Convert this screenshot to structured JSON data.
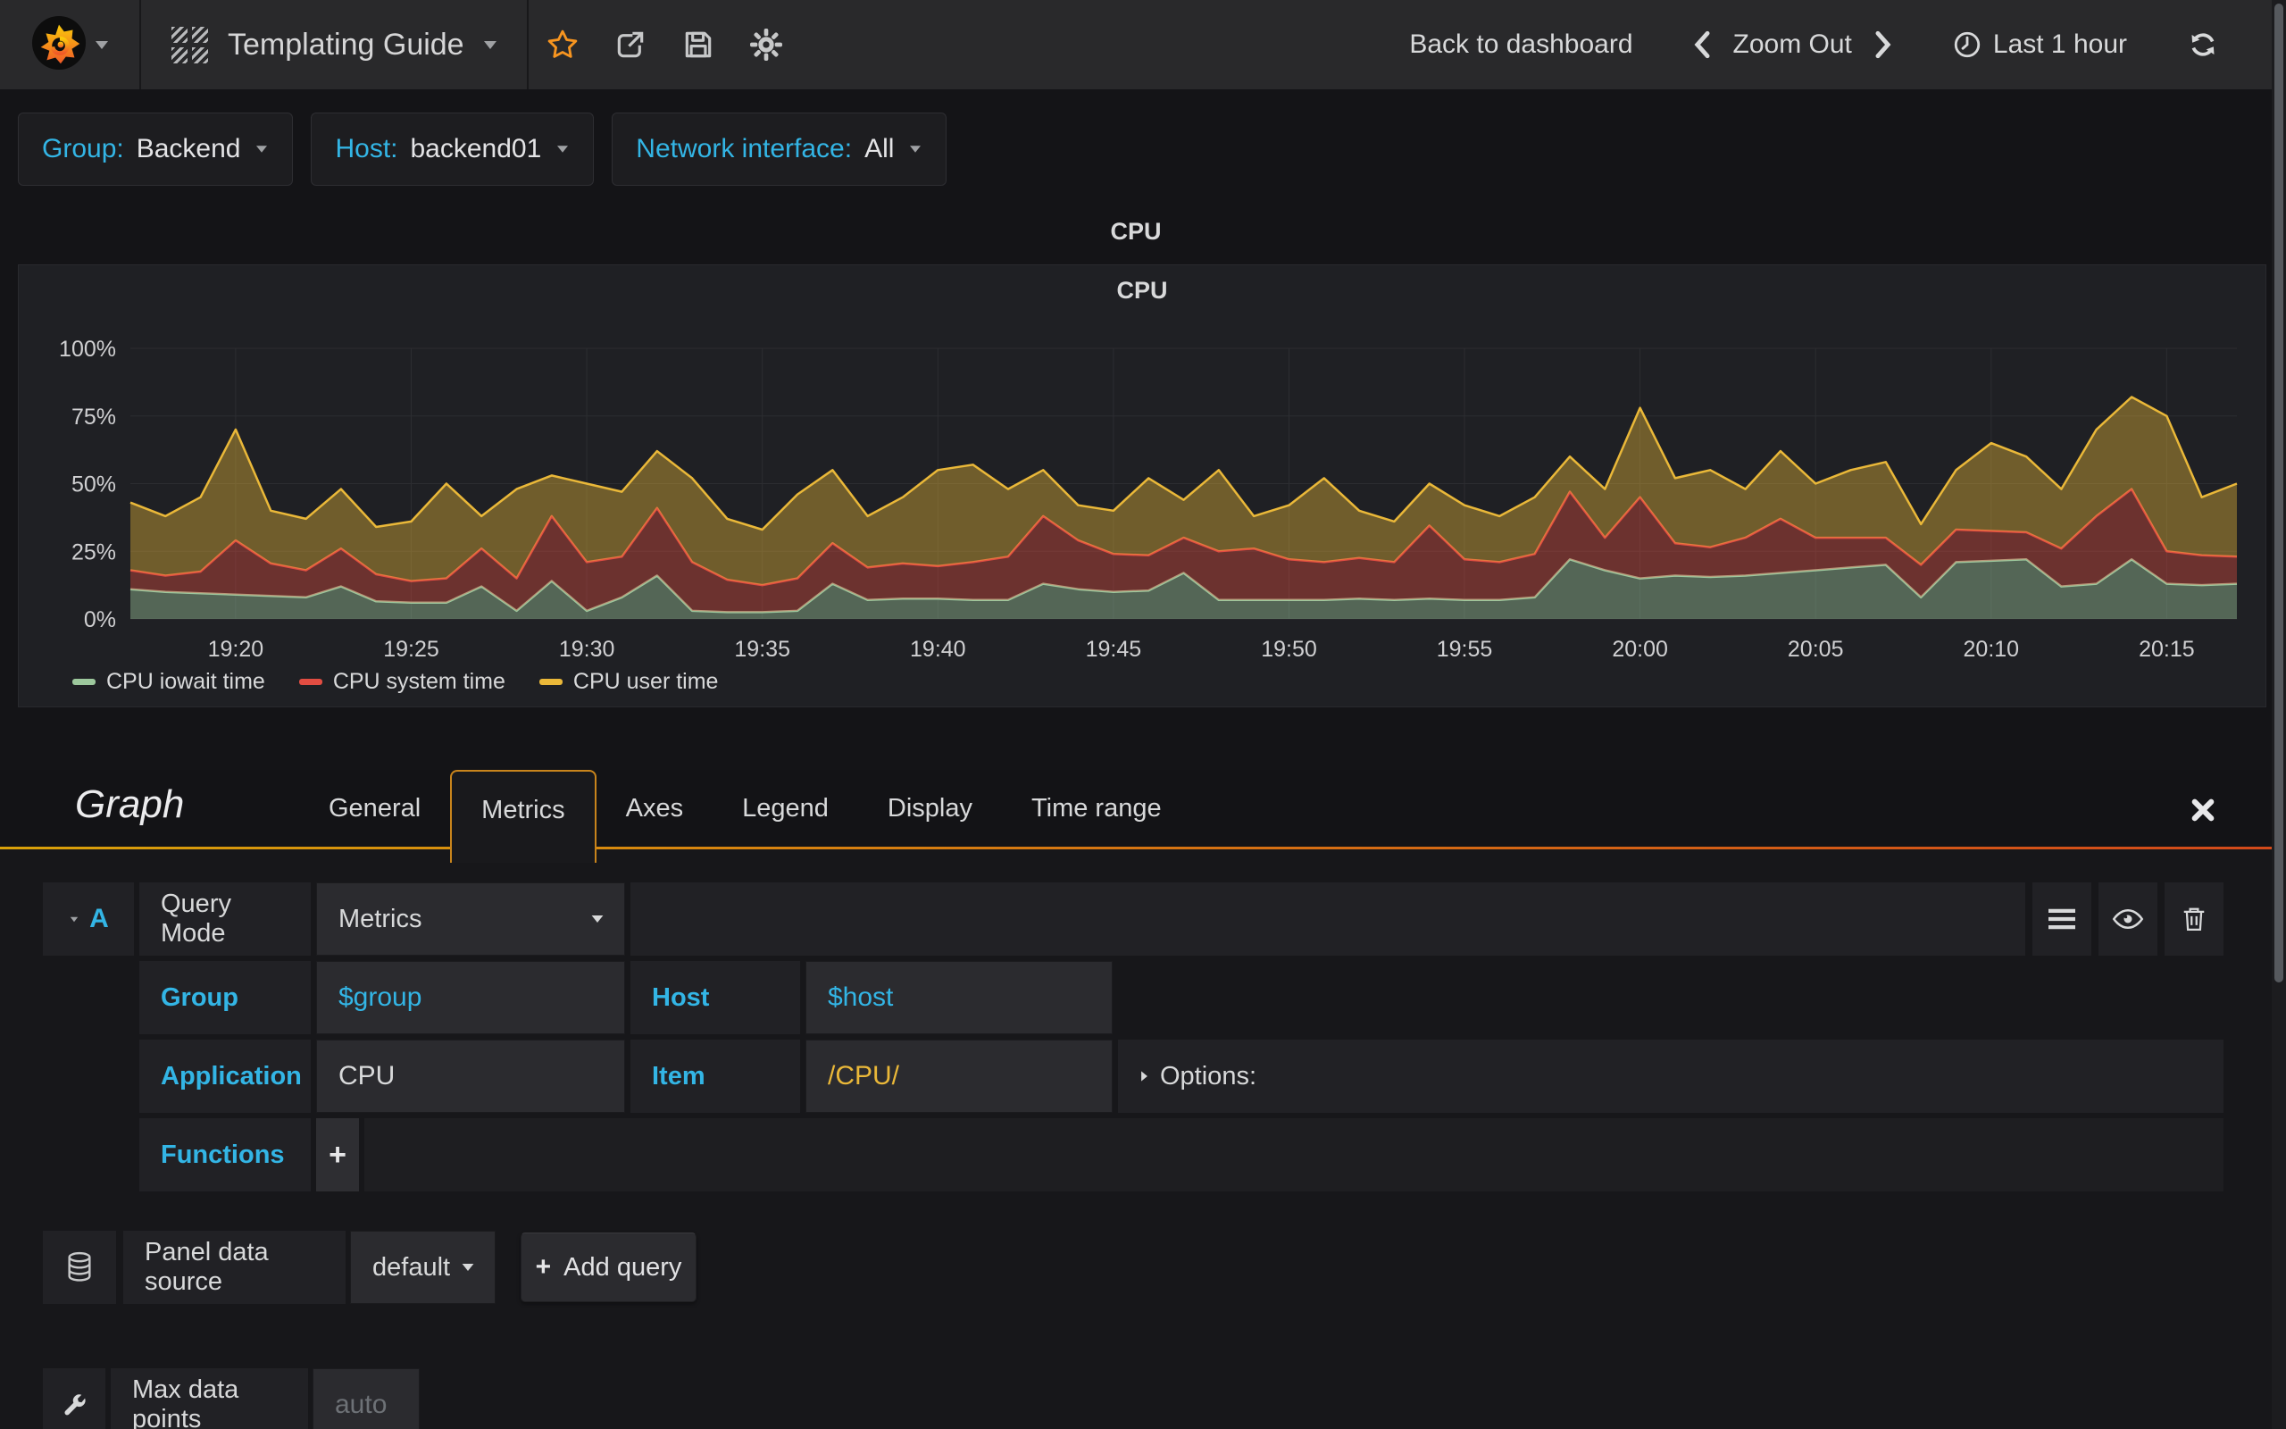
{
  "navbar": {
    "dashboard_title": "Templating Guide",
    "back_to_dashboard": "Back to dashboard",
    "zoom_out_label": "Zoom Out",
    "time_range_label": "Last 1 hour",
    "icons": [
      "grafana-logo",
      "dashboard-grid-icon",
      "star-icon",
      "share-icon",
      "save-icon",
      "gear-icon",
      "chevron-left-icon",
      "chevron-right-icon",
      "clock-icon",
      "refresh-icon"
    ],
    "accent_star_color": "#f79520"
  },
  "variables": [
    {
      "label": "Group:",
      "value": "Backend"
    },
    {
      "label": "Host:",
      "value": "backend01"
    },
    {
      "label": "Network interface:",
      "value": "All"
    }
  ],
  "row": {
    "title": "CPU"
  },
  "panel": {
    "title": "CPU"
  },
  "chart_data": {
    "type": "area",
    "stacked": true,
    "title": "CPU",
    "ylabel": "",
    "xlabel": "",
    "ylim": [
      0,
      100
    ],
    "grid": true,
    "legend_position": "bottom-left",
    "x_start": "19:17",
    "x_end": "20:17",
    "y_ticks": [
      {
        "v": 0,
        "label": "0%"
      },
      {
        "v": 25,
        "label": "25%"
      },
      {
        "v": 50,
        "label": "50%"
      },
      {
        "v": 75,
        "label": "75%"
      },
      {
        "v": 100,
        "label": "100%"
      }
    ],
    "x_ticks": [
      {
        "i": 3,
        "label": "19:20"
      },
      {
        "i": 8,
        "label": "19:25"
      },
      {
        "i": 13,
        "label": "19:30"
      },
      {
        "i": 18,
        "label": "19:35"
      },
      {
        "i": 23,
        "label": "19:40"
      },
      {
        "i": 28,
        "label": "19:45"
      },
      {
        "i": 33,
        "label": "19:50"
      },
      {
        "i": 38,
        "label": "19:55"
      },
      {
        "i": 43,
        "label": "20:00"
      },
      {
        "i": 48,
        "label": "20:05"
      },
      {
        "i": 53,
        "label": "20:10"
      },
      {
        "i": 58,
        "label": "20:15"
      }
    ],
    "series": [
      {
        "name": "CPU iowait time",
        "color": "#9dc89d",
        "fill": "rgba(157,200,157,0.42)",
        "values": [
          11,
          10,
          9.5,
          9,
          8.5,
          8,
          12,
          6.5,
          6,
          6,
          12,
          3,
          14,
          3,
          8,
          16,
          3,
          2.5,
          2.5,
          3,
          13,
          7,
          7.5,
          7.5,
          7,
          7,
          13,
          11,
          10,
          10.5,
          17,
          7,
          7,
          7,
          7,
          7.5,
          7,
          7.5,
          7,
          7,
          8,
          22,
          18,
          15,
          16,
          15.5,
          16,
          17,
          18,
          19,
          20,
          8,
          21,
          21.5,
          22,
          12,
          13,
          22,
          13,
          12.5,
          13
        ]
      },
      {
        "name": "CPU system time",
        "color": "#e24d42",
        "fill": "rgba(226,77,66,0.40)",
        "values": [
          7,
          6,
          8,
          20,
          12,
          10,
          14,
          10,
          8,
          9,
          14,
          12,
          24,
          18,
          15,
          25,
          18,
          12,
          10,
          12,
          15,
          12,
          13,
          12,
          14,
          16,
          25,
          18,
          14,
          13,
          13,
          18,
          19,
          15,
          14,
          15,
          14,
          27,
          15,
          14,
          16,
          25,
          12,
          30,
          12,
          11,
          14,
          20,
          12,
          11,
          10,
          12,
          12,
          11,
          10,
          14,
          25,
          26,
          12,
          11,
          10
        ]
      },
      {
        "name": "CPU user time",
        "color": "#eab839",
        "fill": "rgba(234,184,57,0.40)",
        "values": [
          25,
          22,
          27.5,
          41,
          19.5,
          19,
          22,
          17.5,
          22,
          35,
          12,
          33,
          15,
          29,
          24,
          21,
          31,
          22.5,
          20.5,
          31,
          27,
          19,
          24.5,
          35.5,
          36,
          25,
          17,
          13,
          16,
          28.5,
          14,
          30,
          12,
          20,
          31,
          17.5,
          15,
          15.5,
          20,
          17,
          21,
          13,
          18,
          33,
          24,
          28.5,
          18,
          25,
          20,
          25,
          28,
          15,
          22,
          32.5,
          28,
          22,
          32,
          34,
          50,
          21.5,
          27
        ]
      }
    ]
  },
  "editor": {
    "panel_type": "Graph",
    "tabs": [
      "General",
      "Metrics",
      "Axes",
      "Legend",
      "Display",
      "Time range"
    ],
    "active_tab": "Metrics",
    "query": {
      "letter": "A",
      "query_mode_label": "Query Mode",
      "query_mode_value": "Metrics",
      "group_label": "Group",
      "group_value": "$group",
      "host_label": "Host",
      "host_value": "$host",
      "application_label": "Application",
      "application_value": "CPU",
      "item_label": "Item",
      "item_value": "/CPU/",
      "options_label": "Options:",
      "functions_label": "Functions",
      "add_function_label": "+",
      "row_icons": [
        "menu-icon",
        "eye-icon",
        "trash-icon"
      ]
    },
    "datasource": {
      "label": "Panel data source",
      "value": "default",
      "add_query_label": "Add query",
      "icon": "database-icon"
    },
    "max_data_points": {
      "label": "Max data points",
      "placeholder": "auto",
      "icon": "wrench-icon"
    }
  }
}
